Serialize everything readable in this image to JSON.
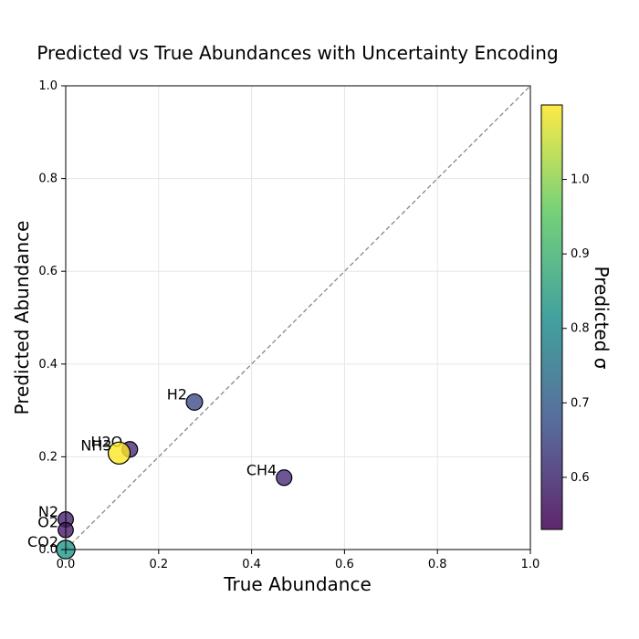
{
  "chart_data": {
    "type": "scatter",
    "title": "Predicted vs True Abundances with Uncertainty Encoding",
    "xlabel": "True Abundance",
    "ylabel": "Predicted Abundance",
    "xlim": [
      0,
      1
    ],
    "ylim": [
      0,
      1
    ],
    "xticks": [
      "0.0",
      "0.2",
      "0.4",
      "0.6",
      "0.8",
      "1.0"
    ],
    "yticks": [
      "0.0",
      "0.2",
      "0.4",
      "0.6",
      "0.8",
      "1.0"
    ],
    "grid": true,
    "reference_line": "y = x (dashed)",
    "points": [
      {
        "label": "H2",
        "x": 0.277,
        "y": 0.318,
        "sigma": 0.66
      },
      {
        "label": "CH4",
        "x": 0.47,
        "y": 0.155,
        "sigma": 0.6
      },
      {
        "label": "H2O",
        "x": 0.138,
        "y": 0.216,
        "sigma": 0.6
      },
      {
        "label": "NH3",
        "x": 0.115,
        "y": 0.208,
        "sigma": 1.1
      },
      {
        "label": "N2",
        "x": 0.0,
        "y": 0.065,
        "sigma": 0.58
      },
      {
        "label": "O2",
        "x": 0.0,
        "y": 0.042,
        "sigma": 0.57
      },
      {
        "label": "CO2",
        "x": 0.0,
        "y": 0.0,
        "sigma": 0.83
      }
    ],
    "colorbar": {
      "label": "Predicted σ",
      "min": 0.53,
      "max": 1.1,
      "ticks": [
        "0.6",
        "0.7",
        "0.8",
        "0.9",
        "1.0"
      ],
      "colormap": "viridis"
    }
  }
}
